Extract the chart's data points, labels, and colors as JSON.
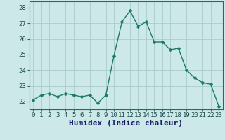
{
  "x": [
    0,
    1,
    2,
    3,
    4,
    5,
    6,
    7,
    8,
    9,
    10,
    11,
    12,
    13,
    14,
    15,
    16,
    17,
    18,
    19,
    20,
    21,
    22,
    23
  ],
  "y": [
    22.1,
    22.4,
    22.5,
    22.3,
    22.5,
    22.4,
    22.3,
    22.4,
    21.9,
    22.4,
    24.9,
    27.1,
    27.8,
    26.8,
    27.1,
    25.8,
    25.8,
    25.3,
    25.4,
    24.0,
    23.5,
    23.2,
    23.1,
    21.7
  ],
  "line_color": "#1a7a6a",
  "marker": "D",
  "marker_size": 2.5,
  "bg_color": "#cce8e8",
  "grid_color": "#aacccc",
  "xlabel": "Humidex (Indice chaleur)",
  "ylim": [
    21.5,
    28.4
  ],
  "xlim": [
    -0.5,
    23.5
  ],
  "yticks": [
    22,
    23,
    24,
    25,
    26,
    27,
    28
  ],
  "xticks": [
    0,
    1,
    2,
    3,
    4,
    5,
    6,
    7,
    8,
    9,
    10,
    11,
    12,
    13,
    14,
    15,
    16,
    17,
    18,
    19,
    20,
    21,
    22,
    23
  ],
  "tick_fontsize": 6.5,
  "xlabel_fontsize": 8,
  "spine_color": "#2a6a5a",
  "tick_color": "#2a6a5a",
  "label_color": "#1a4a4a",
  "xlabel_color": "#1a1a6a"
}
